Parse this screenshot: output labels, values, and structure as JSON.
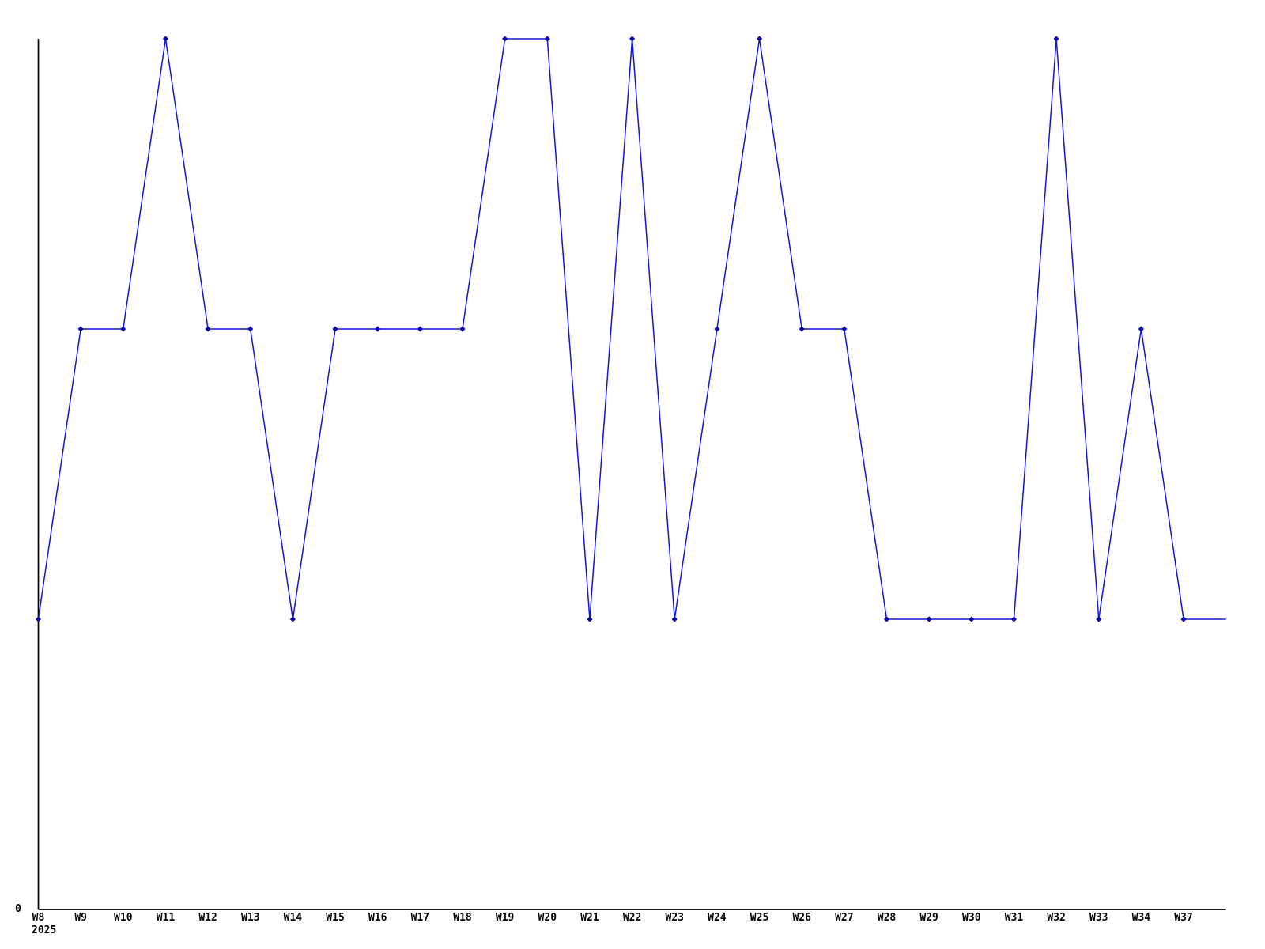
{
  "page": {
    "background_color": "#ffffff"
  },
  "chart_data": {
    "type": "line",
    "title": "",
    "xlabel": "",
    "ylabel": "",
    "x": [
      "W8",
      "W9",
      "W10",
      "W11",
      "W12",
      "W13",
      "W14",
      "W15",
      "W16",
      "W17",
      "W18",
      "W19",
      "W20",
      "W21",
      "W22",
      "W23",
      "W24",
      "W25",
      "W26",
      "W27",
      "W28",
      "W29",
      "W30",
      "W31",
      "W32",
      "W33",
      "W34",
      "W37"
    ],
    "values": [
      1,
      2,
      2,
      3,
      2,
      2,
      1,
      2,
      2,
      2,
      2,
      3,
      3,
      1,
      3,
      1,
      2,
      3,
      2,
      2,
      1,
      1,
      1,
      1,
      3,
      1,
      2,
      1
    ],
    "trailing_segment_value": 1,
    "x_axis_year_label": "2025",
    "y_axis_tick_labels": [
      "0"
    ],
    "ylim": [
      0,
      3
    ],
    "grid": false,
    "legend": false,
    "line_color": "#1414d7",
    "marker_color": "#0a0aa8",
    "marker_shape": "diamond",
    "axis_color": "#000000",
    "label_color": "#000000"
  }
}
